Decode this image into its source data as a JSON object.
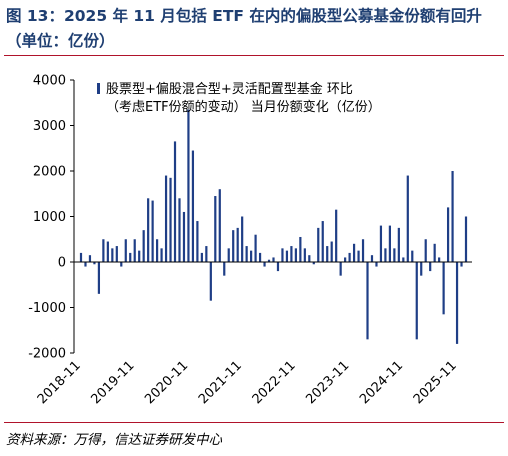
{
  "title": "图 13：2025 年 11 月包括 ETF 在内的偏股型公募基金份额有回升（单位：亿份）",
  "source": "资料来源：万得，信达证券研发中心",
  "colors": {
    "bar": "#1f3e86",
    "title": "#1f3f72",
    "rule": "#b0132b"
  },
  "chart_data": {
    "type": "bar",
    "series": [
      {
        "name": "股票型+偏股混合型+灵活配置型基金 环比（考虑ETF份额的变动） 当月份额变化（亿份）",
        "values": [
          200,
          -100,
          150,
          -50,
          -700,
          500,
          450,
          300,
          350,
          -100,
          500,
          200,
          500,
          250,
          700,
          1400,
          1350,
          500,
          300,
          1900,
          1850,
          2650,
          1400,
          1100,
          3350,
          2450,
          900,
          200,
          350,
          -850,
          1450,
          1600,
          -300,
          300,
          700,
          750,
          1000,
          350,
          250,
          600,
          200,
          -100,
          50,
          100,
          -200,
          300,
          250,
          350,
          300,
          550,
          300,
          150,
          -50,
          750,
          900,
          350,
          450,
          1150,
          -300,
          100,
          200,
          400,
          250,
          500,
          -1700,
          150,
          -100,
          800,
          300,
          800,
          300,
          750,
          100,
          1900,
          250,
          -1700,
          -300,
          500,
          -200,
          400,
          100,
          -1150,
          1200,
          2000,
          -1800,
          -100,
          1000
        ]
      }
    ],
    "x_tick_labels": [
      "2018-11",
      "2019-11",
      "2020-11",
      "2021-11",
      "2022-11",
      "2023-11",
      "2024-11",
      "2025-11"
    ],
    "xlabel": "",
    "ylabel": "",
    "ylim": [
      -2000,
      4000
    ],
    "y_ticks": [
      -2000,
      -1000,
      0,
      1000,
      2000,
      3000,
      4000
    ],
    "grid": false,
    "legend_position": "top-left"
  }
}
